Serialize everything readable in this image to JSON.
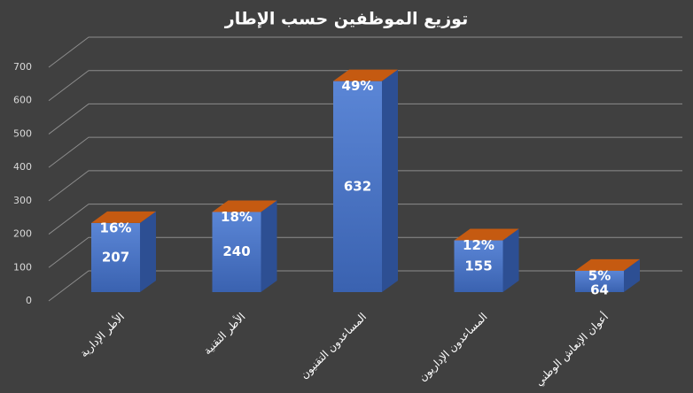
{
  "chart_data": {
    "type": "bar3d",
    "title": "توزيع الموظفين حسب الإطار",
    "categories": [
      "الأطر الإدارية",
      "الأطر التقنية",
      "المساعدون التقنيون",
      "المساعدون الإداريون",
      "أعوان الإنعاش الوطني"
    ],
    "values": [
      207,
      240,
      632,
      155,
      64
    ],
    "shares": [
      16,
      18,
      49,
      12,
      5
    ],
    "share_labels": [
      "16%",
      "18%",
      "49%",
      "12%",
      "5%"
    ],
    "color": "#4472c4",
    "cap_color": "#c55a11",
    "ylim": [
      0,
      700
    ],
    "yticks": [
      0,
      100,
      200,
      300,
      400,
      500,
      600,
      700
    ],
    "grid": true
  }
}
